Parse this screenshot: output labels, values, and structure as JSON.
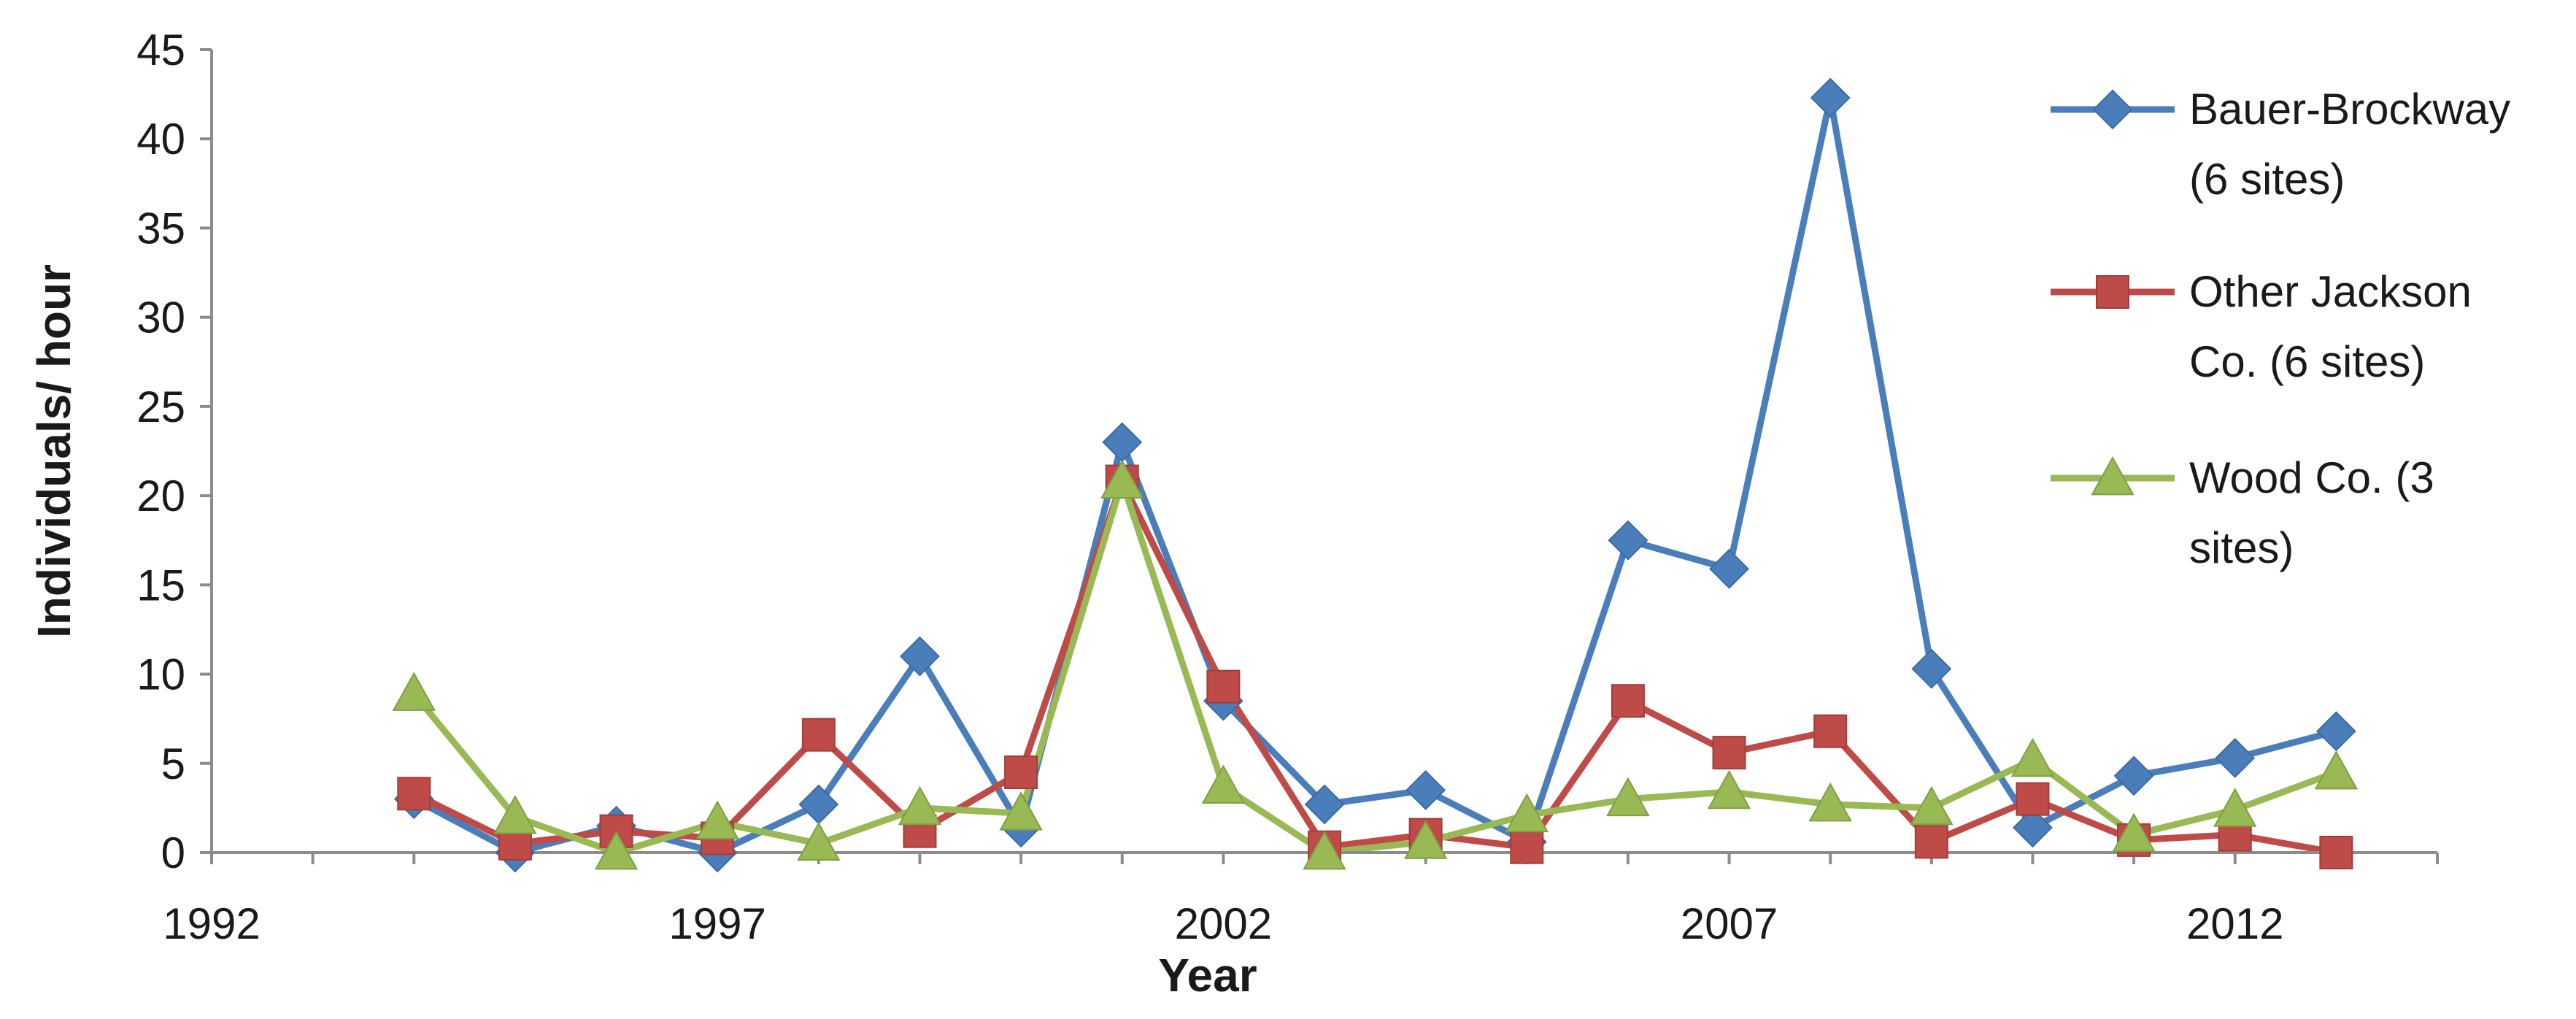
{
  "chart_data": {
    "type": "line",
    "title": "",
    "xlabel": "Year",
    "ylabel": "Individuals/ hour",
    "xlim": [
      1992,
      2014
    ],
    "ylim": [
      0,
      45
    ],
    "x_ticks": [
      1992,
      1997,
      2002,
      2007,
      2012
    ],
    "y_ticks": [
      0,
      5,
      10,
      15,
      20,
      25,
      30,
      35,
      40,
      45
    ],
    "grid": false,
    "legend_position": "right",
    "x": [
      1994,
      1995,
      1996,
      1997,
      1998,
      1999,
      2000,
      2001,
      2002,
      2003,
      2004,
      2005,
      2006,
      2007,
      2008,
      2009,
      2010,
      2011,
      2012,
      2013
    ],
    "series": [
      {
        "name": "Bauer-Brockway (6 sites)",
        "legend_lines": [
          "Bauer-Brockway",
          "(6 sites)"
        ],
        "color": "#4a7ebb",
        "marker": "diamond",
        "values": [
          3.0,
          0.0,
          1.5,
          0.0,
          2.7,
          11.0,
          1.4,
          23.0,
          8.5,
          2.7,
          3.5,
          0.6,
          17.5,
          15.9,
          42.3,
          10.3,
          1.4,
          4.3,
          5.3,
          6.8
        ]
      },
      {
        "name": "Other Jackson Co. (6 sites)",
        "legend_lines": [
          "Other Jackson",
          "Co. (6 sites)"
        ],
        "color": "#be4b48",
        "marker": "square",
        "values": [
          3.3,
          0.5,
          1.2,
          0.8,
          6.6,
          1.2,
          4.5,
          20.8,
          9.3,
          0.3,
          1.0,
          0.3,
          8.5,
          5.6,
          6.8,
          0.6,
          3.0,
          0.7,
          1.0,
          0.0
        ]
      },
      {
        "name": "Wood Co. (3 sites)",
        "legend_lines": [
          "Wood Co. (3",
          "sites)"
        ],
        "color": "#98b954",
        "marker": "triangle",
        "values": [
          8.9,
          2.0,
          0.0,
          1.7,
          0.5,
          2.5,
          2.2,
          20.8,
          3.7,
          0.0,
          0.6,
          2.1,
          3.0,
          3.4,
          2.7,
          2.5,
          5.2,
          1.0,
          2.4,
          4.5
        ]
      }
    ]
  }
}
